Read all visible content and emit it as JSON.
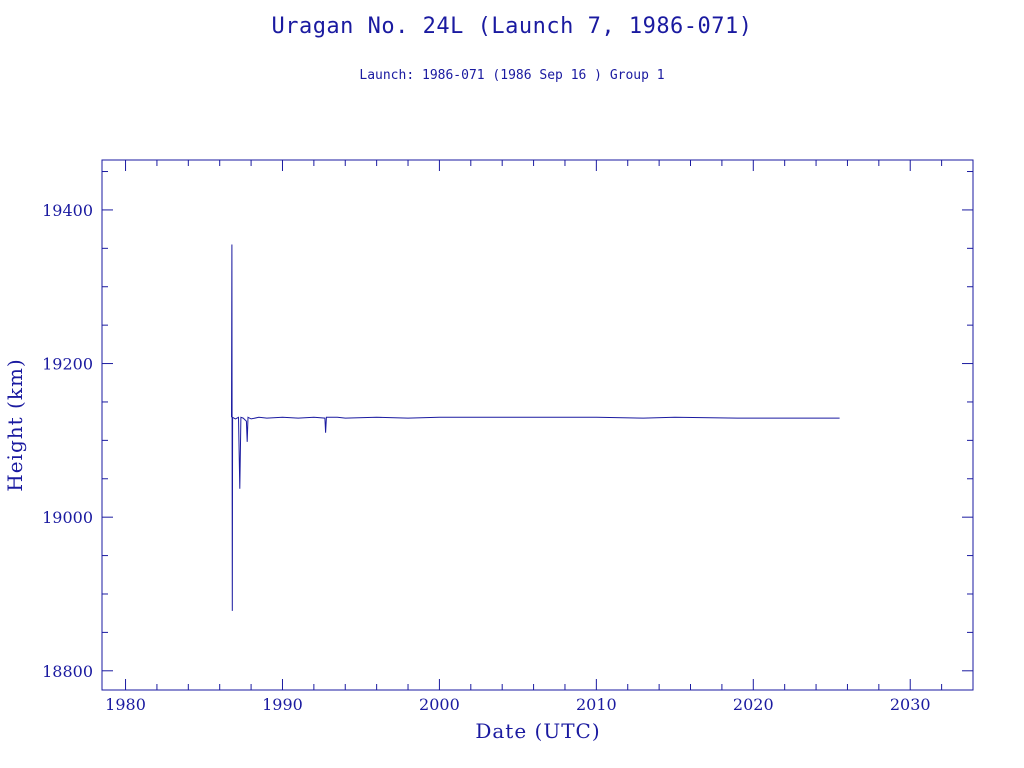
{
  "title": "Uragan No. 24L (Launch 7, 1986-071)",
  "subtitle": "Launch: 1986-071  (1986 Sep 16 )  Group 1",
  "chart_data": {
    "type": "line",
    "title": "Uragan No. 24L (Launch 7, 1986-071)",
    "subtitle": "Launch: 1986-071  (1986 Sep 16 )  Group 1",
    "xlabel": "Date (UTC)",
    "ylabel": "Height (km)",
    "xlim": [
      1978.5,
      2034
    ],
    "ylim": [
      18775,
      19465
    ],
    "x_ticks": [
      1980,
      1990,
      2000,
      2010,
      2020,
      2030
    ],
    "y_ticks": [
      18800,
      19000,
      19200,
      19400
    ],
    "x_tick_labels": [
      "1980",
      "1990",
      "2000",
      "2010",
      "2020",
      "2030"
    ],
    "y_tick_labels": [
      "18800",
      "19000",
      "19200",
      "19400"
    ],
    "grid": false,
    "color": "#1a1aa0",
    "series": [
      {
        "x": [
          1986.75,
          1986.78,
          1986.8,
          1986.82,
          1987.0,
          1987.2,
          1987.28,
          1987.35,
          1987.5,
          1987.7,
          1987.75,
          1987.8,
          1988.0,
          1988.5,
          1989.0,
          1990.0,
          1991.0,
          1992.0,
          1992.7,
          1992.75,
          1992.8,
          1993.5,
          1994.0,
          1996.0,
          1998.0,
          2000.0,
          2005.0,
          2010.0,
          2013.0,
          2015.0,
          2019.0,
          2022.0,
          2025.5
        ],
        "y": [
          19130,
          19355,
          18878,
          19130,
          19128,
          19130,
          19037,
          19130,
          19129,
          19125,
          19098,
          19130,
          19128,
          19130,
          19129,
          19130,
          19129,
          19130,
          19129,
          19110,
          19130,
          19130,
          19129,
          19130,
          19129,
          19130,
          19130,
          19130,
          19129,
          19130,
          19129,
          19129,
          19129
        ]
      }
    ]
  }
}
